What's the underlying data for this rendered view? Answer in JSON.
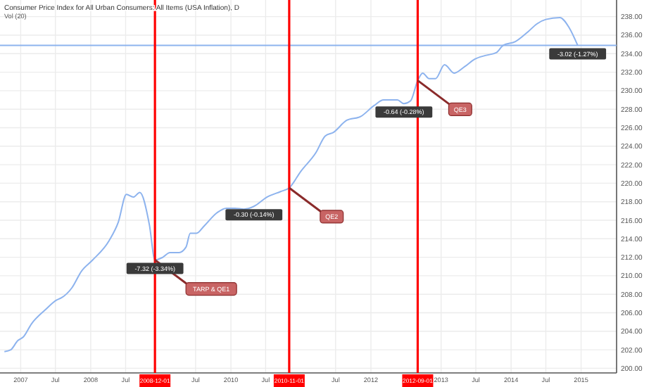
{
  "chart_data": {
    "type": "line",
    "title": "Consumer Price Index for All Urban Consumers: All Items (USA Inflation), D",
    "subtitle": "Vol (20)",
    "x": [
      "2006-10-08",
      "2006-11-10",
      "2006-12-17",
      "2007-01-15",
      "2007-02-26",
      "2007-05-08",
      "2007-07-09",
      "2007-07-31",
      "2007-09-25",
      "2007-11-14",
      "2008-01-11",
      "2008-04-06",
      "2008-05-24",
      "2008-07-05",
      "2008-08-10",
      "2008-09-13",
      "2008-11-02",
      "2008-12-01",
      "2009-01-11",
      "2009-02-17",
      "2009-04-05",
      "2009-05-12",
      "2009-06-03",
      "2009-07-06",
      "2009-08-11",
      "2009-10-20",
      "2009-12-08",
      "2010-01-22",
      "2010-03-10",
      "2010-05-01",
      "2010-07-08",
      "2010-09-17",
      "2010-11-01",
      "2011-01-01",
      "2011-03-20",
      "2011-05-08",
      "2011-06-20",
      "2011-08-28",
      "2011-11-08",
      "2012-01-18",
      "2012-03-07",
      "2012-05-18",
      "2012-06-21",
      "2012-07-26",
      "2012-09-01",
      "2012-09-27",
      "2012-10-31",
      "2012-12-03",
      "2013-01-19",
      "2013-03-10",
      "2013-05-04",
      "2013-06-25",
      "2013-08-19",
      "2013-10-15",
      "2013-11-21",
      "2014-01-23",
      "2014-04-01",
      "2014-05-14",
      "2014-07-01",
      "2014-09-12",
      "2014-10-31",
      "2014-12-14"
    ],
    "series": [
      {
        "color": "#8db3ee",
        "values": [
          201.8,
          202,
          203,
          203.4,
          204.8,
          206.3,
          207.4,
          207.6,
          208.7,
          210.5,
          211.7,
          213.8,
          215.8,
          218.8,
          218.5,
          219,
          215.5,
          211.7,
          212,
          212.5,
          212.5,
          213.1,
          214.6,
          214.6,
          215.3,
          216.8,
          217.3,
          217.3,
          217.2,
          217.5,
          218.5,
          219.1,
          219.5,
          221.3,
          223.3,
          225.1,
          225.5,
          226.8,
          227.2,
          228.4,
          229,
          229,
          228.6,
          228.9,
          231.1,
          231.9,
          231.3,
          231.3,
          232.8,
          231.9,
          232.6,
          233.4,
          233.8,
          234.1,
          234.9,
          235.3,
          236.4,
          237.2,
          237.7,
          237.9,
          236.8,
          234.9
        ]
      }
    ],
    "xlim": [
      "2006-09-15",
      "2015-07-05"
    ],
    "xticks": [
      {
        "value": "2007-01-01",
        "label": "2007"
      },
      {
        "value": "2007-07-01",
        "label": "Jul"
      },
      {
        "value": "2008-01-01",
        "label": "2008"
      },
      {
        "value": "2008-07-01",
        "label": "Jul"
      },
      {
        "value": "2009-07-01",
        "label": "Jul"
      },
      {
        "value": "2010-01-01",
        "label": "2010"
      },
      {
        "value": "2010-07-01",
        "label": "Jul"
      },
      {
        "value": "2011-07-01",
        "label": "Jul"
      },
      {
        "value": "2012-01-01",
        "label": "2012"
      },
      {
        "value": "2013-01-01",
        "label": "2013"
      },
      {
        "value": "2013-07-01",
        "label": "Jul"
      },
      {
        "value": "2014-01-01",
        "label": "2014"
      },
      {
        "value": "2014-07-01",
        "label": "Jul"
      },
      {
        "value": "2015-01-01",
        "label": "2015"
      }
    ],
    "ylim": [
      199.5,
      239.8
    ],
    "yticks": [
      {
        "value": 200,
        "label": "200.00"
      },
      {
        "value": 202,
        "label": "202.00"
      },
      {
        "value": 204,
        "label": "204.00"
      },
      {
        "value": 206,
        "label": "206.00"
      },
      {
        "value": 208,
        "label": "208.00"
      },
      {
        "value": 210,
        "label": "210.00"
      },
      {
        "value": 212,
        "label": "212.00"
      },
      {
        "value": 214,
        "label": "214.00"
      },
      {
        "value": 216,
        "label": "216.00"
      },
      {
        "value": 218,
        "label": "218.00"
      },
      {
        "value": 220,
        "label": "220.00"
      },
      {
        "value": 222,
        "label": "222.00"
      },
      {
        "value": 224,
        "label": "224.00"
      },
      {
        "value": 226,
        "label": "226.00"
      },
      {
        "value": 228,
        "label": "228.00"
      },
      {
        "value": 230,
        "label": "230.00"
      },
      {
        "value": 232,
        "label": "232.00"
      },
      {
        "value": 234,
        "label": "234.00"
      },
      {
        "value": 236,
        "label": "236.00"
      },
      {
        "value": 238,
        "label": "238.00"
      }
    ],
    "grid": true,
    "ref_lines": [
      {
        "axis": "x",
        "value": "2008-12-01",
        "label": "2008-12-01",
        "color": "#ff0000"
      },
      {
        "axis": "x",
        "value": "2010-11-01",
        "label": "2010-11-01",
        "color": "#ff0000"
      },
      {
        "axis": "x",
        "value": "2012-09-01",
        "label": "2012-09-01",
        "color": "#ff0000"
      },
      {
        "axis": "y",
        "value": 234.9,
        "color": "#8db3ee"
      }
    ],
    "annotations": [
      {
        "text": "-7.32 (-3.34%)",
        "x": "2008-12-01",
        "y": 211.7
      },
      {
        "text": "-0.30 (-0.14%)",
        "x": "2010-05-01",
        "y": 217.5
      },
      {
        "text": "-0.64 (-0.28%)",
        "x": "2012-06-21",
        "y": 228.6
      },
      {
        "text": "-3.02 (-1.27%)",
        "x": "2014-12-14",
        "y": 234.9
      },
      {
        "text": "TARP & QE1",
        "x": "2008-12-01",
        "y": 211.7
      },
      {
        "text": "QE2",
        "x": "2010-11-01",
        "y": 219.5
      },
      {
        "text": "QE3",
        "x": "2012-09-01",
        "y": 231.1
      }
    ]
  }
}
